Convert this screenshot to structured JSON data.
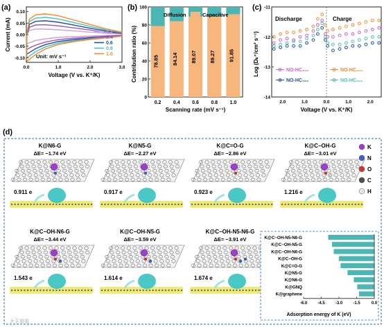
{
  "figure": {
    "panels": [
      "(a)",
      "(b)",
      "(c)",
      "(d)"
    ]
  },
  "panel_a": {
    "ylabel": "Current (mA)",
    "xlabel": "Voltage (V vs. K⁺/K)",
    "unit_note": "Unit: mV s⁻¹",
    "legend": [
      "0.2",
      "0.4",
      "0.6",
      "0.8",
      "1.0"
    ],
    "colors": [
      "#c9a3d6",
      "#a14fbd",
      "#1f4fa3",
      "#4dbdb8",
      "#f08a2c"
    ],
    "xticks": [
      "0.0",
      "1.0",
      "2.0",
      "3.0"
    ],
    "yticks": [
      "0.10",
      "0.05",
      "0.00",
      "-0.05",
      "-0.10"
    ]
  },
  "panel_b": {
    "ylabel": "Contribution ratio (%)",
    "xlabel": "Scanning rate (mV s⁻¹)",
    "legend": [
      "Diffusion",
      "Capacitive"
    ],
    "colors": {
      "diffusion": "#4db6b2",
      "capacitive": "#f7b77c"
    },
    "xticks": [
      "0.2",
      "0.4",
      "0.6",
      "0.8",
      "1.0"
    ],
    "yticks": [
      "0",
      "20",
      "40",
      "60",
      "80",
      "100"
    ]
  },
  "panel_c": {
    "ylabel": "Log (Dₖ⁺/cm² s⁻¹)",
    "xlabel": "Voltage (V vs. K⁺/K)",
    "discharge_label": "Discharge",
    "charge_label": "Charge",
    "legend": [
      "NO-HC₅₀₀",
      "NO-HC₆₀₀",
      "NO-HC₇₀₀",
      "NO-HC₉₀₀"
    ],
    "colors": [
      "#c464c8",
      "#f08a2c",
      "#1f4fa3",
      "#4dbdb8"
    ],
    "yticks": [
      "-11",
      "-12",
      "-13",
      "-14"
    ],
    "xticks_left": [
      "2.0",
      "1.0",
      "0.0"
    ],
    "xticks_right": [
      "1.0",
      "2.0"
    ]
  },
  "panel_d": {
    "structures": [
      {
        "title": "K@N6-G",
        "energy": "ΔE= −1.74 eV",
        "charge": "0.911 e"
      },
      {
        "title": "K@N5-G",
        "energy": "ΔE= −2.27 eV",
        "charge": "0.917 e"
      },
      {
        "title": "K@C=O-G",
        "energy": "ΔE= −2.86 eV",
        "charge": "0.923 e"
      },
      {
        "title": "K@C−OH-G",
        "energy": "ΔE= −3.01 eV",
        "charge": "1.216 e"
      },
      {
        "title": "K@C−OH-N6-G",
        "energy": "ΔE= −3.44 eV",
        "charge": "1.543 e"
      },
      {
        "title": "K@C−OH-N5-G",
        "energy": "ΔE= −3.59 eV",
        "charge": "1.614 e"
      },
      {
        "title": "K@C−OH-N5-N6-G",
        "energy": "ΔE= −3.91 eV",
        "charge": "1.674 e"
      }
    ],
    "atom_legend": [
      {
        "label": "K",
        "color": "#a23bd1"
      },
      {
        "label": "N",
        "color": "#3d61c8"
      },
      {
        "label": "O",
        "color": "#d8342a"
      },
      {
        "label": "C",
        "color": "#505050"
      },
      {
        "label": "H",
        "color": "#e6e6e6"
      }
    ],
    "bar_xlabel": "Adsorption energy of K (eV)",
    "bar_xticks": [
      "-6.0",
      "-4.5",
      "-3.0",
      "-1.5",
      "0.0"
    ],
    "bar_color": "#4db6b2",
    "watermark": "大王姐姐"
  },
  "chart_data": [
    {
      "type": "line",
      "title": "",
      "xlabel": "Voltage (V vs. K⁺/K)",
      "ylabel": "Current (mA)",
      "xlim": [
        0.0,
        3.0
      ],
      "ylim": [
        -0.12,
        0.12
      ],
      "series": [
        {
          "name": "0.2",
          "x": [
            0.01,
            0.1,
            0.3,
            0.6,
            1.0,
            1.5,
            2.0,
            2.5,
            3.0
          ],
          "y": [
            0.0,
            0.018,
            0.024,
            0.024,
            0.021,
            0.016,
            0.011,
            0.006,
            0.003
          ]
        },
        {
          "name": "0.4",
          "x": [
            0.01,
            0.1,
            0.3,
            0.6,
            1.0,
            1.5,
            2.0,
            2.5,
            3.0
          ],
          "y": [
            0.0,
            0.032,
            0.042,
            0.043,
            0.038,
            0.029,
            0.02,
            0.011,
            0.005
          ]
        },
        {
          "name": "0.6",
          "x": [
            0.01,
            0.1,
            0.3,
            0.6,
            1.0,
            1.5,
            2.0,
            2.5,
            3.0
          ],
          "y": [
            0.0,
            0.045,
            0.058,
            0.06,
            0.054,
            0.041,
            0.028,
            0.016,
            0.007
          ]
        },
        {
          "name": "0.8",
          "x": [
            0.01,
            0.1,
            0.3,
            0.6,
            1.0,
            1.5,
            2.0,
            2.5,
            3.0
          ],
          "y": [
            0.0,
            0.057,
            0.072,
            0.075,
            0.068,
            0.052,
            0.036,
            0.02,
            0.009
          ]
        },
        {
          "name": "1.0",
          "x": [
            0.01,
            0.1,
            0.3,
            0.6,
            1.0,
            1.5,
            2.0,
            2.5,
            3.0
          ],
          "y": [
            0.0,
            0.068,
            0.086,
            0.09,
            0.082,
            0.063,
            0.044,
            0.025,
            0.011
          ]
        }
      ],
      "cathodic_series": [
        {
          "name": "0.2",
          "x": [
            3.0,
            2.5,
            2.0,
            1.5,
            1.0,
            0.6,
            0.3,
            0.1,
            0.01
          ],
          "y": [
            -0.002,
            -0.004,
            -0.006,
            -0.008,
            -0.012,
            -0.018,
            -0.025,
            -0.035,
            -0.04
          ]
        },
        {
          "name": "0.4",
          "x": [
            3.0,
            2.5,
            2.0,
            1.5,
            1.0,
            0.6,
            0.3,
            0.1,
            0.01
          ],
          "y": [
            -0.004,
            -0.007,
            -0.011,
            -0.015,
            -0.022,
            -0.032,
            -0.045,
            -0.058,
            -0.065
          ]
        },
        {
          "name": "0.6",
          "x": [
            3.0,
            2.5,
            2.0,
            1.5,
            1.0,
            0.6,
            0.3,
            0.1,
            0.01
          ],
          "y": [
            -0.005,
            -0.01,
            -0.015,
            -0.021,
            -0.03,
            -0.043,
            -0.06,
            -0.077,
            -0.085
          ]
        },
        {
          "name": "0.8",
          "x": [
            3.0,
            2.5,
            2.0,
            1.5,
            1.0,
            0.6,
            0.3,
            0.1,
            0.01
          ],
          "y": [
            -0.006,
            -0.012,
            -0.018,
            -0.026,
            -0.037,
            -0.053,
            -0.073,
            -0.093,
            -0.1
          ]
        },
        {
          "name": "1.0",
          "x": [
            3.0,
            2.5,
            2.0,
            1.5,
            1.0,
            0.6,
            0.3,
            0.1,
            0.01
          ],
          "y": [
            -0.007,
            -0.014,
            -0.021,
            -0.03,
            -0.043,
            -0.062,
            -0.085,
            -0.107,
            -0.115
          ]
        }
      ]
    },
    {
      "type": "bar",
      "title": "",
      "xlabel": "Scanning rate (mV s⁻¹)",
      "ylabel": "Contribution ratio (%)",
      "ylim": [
        0,
        100
      ],
      "categories": [
        "0.2",
        "0.4",
        "0.6",
        "0.8",
        "1.0"
      ],
      "series": [
        {
          "name": "Capacitive",
          "values": [
            78.85,
            84.14,
            89.07,
            89.27,
            91.85
          ]
        },
        {
          "name": "Diffusion",
          "values": [
            21.15,
            15.86,
            10.93,
            10.73,
            8.15
          ]
        }
      ],
      "value_labels": [
        "78.85",
        "84.14",
        "89.07",
        "89.27",
        "91.85"
      ]
    },
    {
      "type": "scatter",
      "title": "",
      "xlabel": "Voltage (V vs. K⁺/K)",
      "ylabel": "Log (Dₖ⁺/cm² s⁻¹)",
      "ylim": [
        -14,
        -11
      ],
      "discharge_xlim": [
        2.5,
        0.0
      ],
      "charge_xlim": [
        0.0,
        2.5
      ],
      "series": [
        {
          "name": "NO-HC₅₀₀",
          "discharge": {
            "x": [
              2.4,
              2.1,
              1.8,
              1.5,
              1.2,
              0.9,
              0.6,
              0.4,
              0.2,
              0.05
            ],
            "y": [
              -12.2,
              -12.1,
              -12.05,
              -12.1,
              -12.0,
              -11.95,
              -11.8,
              -11.6,
              -11.45,
              -11.9
            ]
          },
          "charge": {
            "x": [
              0.05,
              0.3,
              0.6,
              0.9,
              1.2,
              1.5,
              1.8,
              2.1,
              2.4
            ],
            "y": [
              -12.0,
              -12.0,
              -11.95,
              -11.9,
              -11.9,
              -11.85,
              -11.8,
              -11.75,
              -11.7
            ]
          }
        },
        {
          "name": "NO-HC₆₀₀",
          "discharge": {
            "x": [
              2.4,
              2.1,
              1.8,
              1.5,
              1.2,
              0.9,
              0.6,
              0.4,
              0.2,
              0.05
            ],
            "y": [
              -12.0,
              -11.9,
              -11.85,
              -11.85,
              -11.8,
              -11.75,
              -11.65,
              -11.4,
              -11.25,
              -11.6
            ]
          },
          "charge": {
            "x": [
              0.05,
              0.3,
              0.6,
              0.9,
              1.2,
              1.5,
              1.8,
              2.1,
              2.4
            ],
            "y": [
              -11.8,
              -11.75,
              -11.7,
              -11.65,
              -11.6,
              -11.55,
              -11.5,
              -11.45,
              -11.45
            ]
          }
        },
        {
          "name": "NO-HC₇₀₀",
          "discharge": {
            "x": [
              2.4,
              2.1,
              1.8,
              1.5,
              1.2,
              0.9,
              0.6,
              0.4,
              0.2,
              0.05
            ],
            "y": [
              -12.4,
              -12.35,
              -12.3,
              -12.3,
              -12.3,
              -12.2,
              -12.1,
              -11.9,
              -11.7,
              -12.1
            ]
          },
          "charge": {
            "x": [
              0.05,
              0.3,
              0.6,
              0.9,
              1.2,
              1.5,
              1.8,
              2.1,
              2.4
            ],
            "y": [
              -12.3,
              -12.45,
              -12.4,
              -12.35,
              -12.3,
              -12.3,
              -12.25,
              -12.2,
              -12.2
            ]
          }
        },
        {
          "name": "NO-HC₉₀₀",
          "discharge": {
            "x": [
              2.4,
              2.1,
              1.8,
              1.5,
              1.2,
              0.9,
              0.6,
              0.4,
              0.2,
              0.05
            ],
            "y": [
              -12.3,
              -12.25,
              -12.2,
              -12.15,
              -12.15,
              -12.05,
              -11.95,
              -11.75,
              -11.55,
              -12.0
            ]
          },
          "charge": {
            "x": [
              0.05,
              0.3,
              0.6,
              0.9,
              1.2,
              1.5,
              1.8,
              2.1,
              2.4
            ],
            "y": [
              -12.2,
              -12.25,
              -12.25,
              -12.2,
              -12.15,
              -12.1,
              -12.05,
              -12.0,
              -12.0
            ]
          }
        }
      ]
    },
    {
      "type": "bar",
      "title": "",
      "xlabel": "Adsorption energy of K (eV)",
      "ylabel": "",
      "xlim": [
        -6.0,
        0.0
      ],
      "orientation": "horizontal",
      "categories": [
        "K@C−OH-N5-N6-G",
        "K@C−OH-N5-G",
        "K@C−OH-N6-G",
        "K@C−OH-G",
        "K@C=O-G",
        "K@N5-G",
        "K@N6-G",
        "K@GNQ",
        "K@graphene"
      ],
      "values": [
        -3.91,
        -3.59,
        -3.44,
        -3.01,
        -2.86,
        -2.27,
        -1.74,
        -1.45,
        -1.3
      ]
    }
  ]
}
